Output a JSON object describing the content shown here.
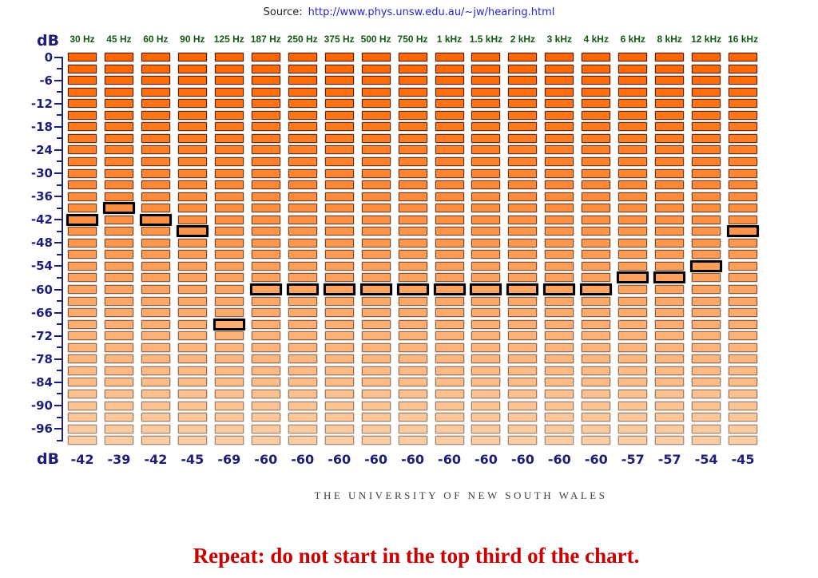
{
  "page": {
    "source_prefix": "Source:",
    "source_url": "http://www.phys.unsw.edu.au/~jw/hearing.html",
    "university_footer": "THE UNIVERSITY OF NEW SOUTH WALES",
    "warning_text": "Repeat: do not start in the top third of the chart."
  },
  "chart_data": {
    "type": "bar",
    "title": "Hearing test equalizer: one highlighted 3 dB segment per frequency column",
    "categories": [
      "30 Hz",
      "45 Hz",
      "60 Hz",
      "90 Hz",
      "125 Hz",
      "187 Hz",
      "250 Hz",
      "375 Hz",
      "500 Hz",
      "750 Hz",
      "1 kHz",
      "1.5 kHz",
      "2 kHz",
      "3 kHz",
      "4 kHz",
      "6 kHz",
      "8 kHz",
      "12 kHz",
      "16 kHz"
    ],
    "values": [
      -42,
      -39,
      -42,
      -45,
      -69,
      -60,
      -60,
      -60,
      -60,
      -60,
      -60,
      -60,
      -60,
      -60,
      -60,
      -57,
      -57,
      -54,
      -45
    ],
    "value_labels": [
      "-42",
      "-39",
      "-42",
      "-45",
      "-69",
      "-60",
      "-60",
      "-60",
      "-60",
      "-60",
      "-60",
      "-60",
      "-60",
      "-60",
      "-60",
      "-57",
      "-57",
      "-54",
      "-45"
    ],
    "ylabel": "dB",
    "ylabel_bottom": "dB",
    "ylim": [
      -99,
      0
    ],
    "segment_step_db": 3,
    "rows": 34,
    "ytick_labels": [
      "0",
      "-6",
      "-12",
      "-18",
      "-24",
      "-30",
      "-36",
      "-42",
      "-48",
      "-54",
      "-60",
      "-66",
      "-72",
      "-78",
      "-84",
      "-90",
      "-96"
    ],
    "grid": false,
    "legend": null,
    "colors": {
      "segment_top": "#ff6600",
      "segment_bottom": "#fbcda4",
      "highlight_border": "#000000",
      "axis": "#1d1d7c",
      "freq_label": "#155815",
      "value_label": "#1d1d7c",
      "link": "#2626d8",
      "source_text": "#222222",
      "warning": "#cc0000",
      "footer": "#3f3f3f"
    }
  }
}
